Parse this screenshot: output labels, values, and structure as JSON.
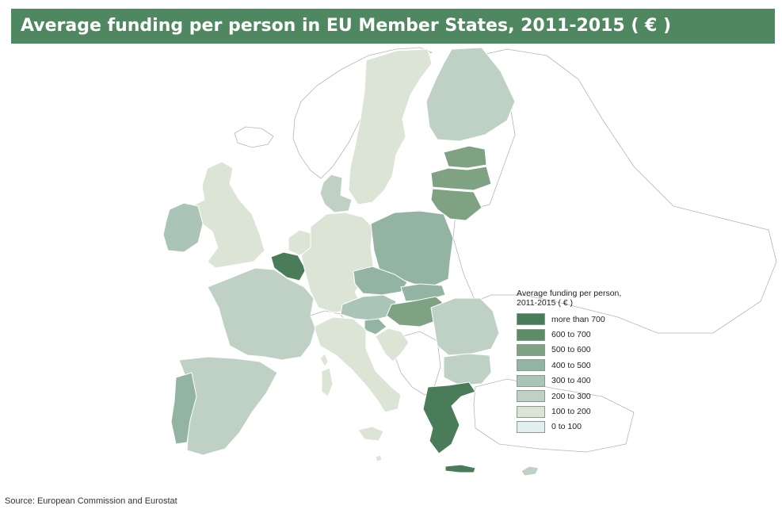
{
  "title": "Average funding per person in EU Member States, 2011-2015 ( € )",
  "legend": {
    "title": "Average funding per person, 2011-2015 ( € )",
    "classes": [
      {
        "label": "more than 700",
        "color": "#4a7c5a"
      },
      {
        "label": "600 to 700",
        "color": "#5d8c69"
      },
      {
        "label": "500 to 600",
        "color": "#7fa283"
      },
      {
        "label": "400 to 500",
        "color": "#93b3a3"
      },
      {
        "label": "300 to 400",
        "color": "#aac4b7"
      },
      {
        "label": "200 to 300",
        "color": "#bfd1c5"
      },
      {
        "label": "100 to 200",
        "color": "#dce4d5"
      },
      {
        "label": "0 to 100",
        "color": "#e3eeef"
      }
    ]
  },
  "source": "Source: European Commission and Eurostat",
  "colors": {
    "title_bar": "#4f8760",
    "non_eu_fill": "#ffffff",
    "non_eu_border": "#b5b5b5",
    "eu_border": "#ffffff"
  },
  "regions": [
    {
      "name": "Finland",
      "class": "200 to 300"
    },
    {
      "name": "Sweden",
      "class": "100 to 200"
    },
    {
      "name": "Estonia",
      "class": "500 to 600"
    },
    {
      "name": "Latvia",
      "class": "500 to 600"
    },
    {
      "name": "Lithuania",
      "class": "500 to 600"
    },
    {
      "name": "Denmark",
      "class": "200 to 300"
    },
    {
      "name": "United Kingdom",
      "class": "100 to 200"
    },
    {
      "name": "Ireland",
      "class": "300 to 400"
    },
    {
      "name": "Netherlands",
      "class": "100 to 200"
    },
    {
      "name": "Belgium",
      "class": "more than 700"
    },
    {
      "name": "Luxembourg",
      "class": "more than 700"
    },
    {
      "name": "Germany",
      "class": "100 to 200"
    },
    {
      "name": "Poland",
      "class": "400 to 500"
    },
    {
      "name": "Czech Republic",
      "class": "400 to 500"
    },
    {
      "name": "Slovakia",
      "class": "400 to 500"
    },
    {
      "name": "Austria",
      "class": "300 to 400"
    },
    {
      "name": "Hungary",
      "class": "500 to 600"
    },
    {
      "name": "Slovenia",
      "class": "400 to 500"
    },
    {
      "name": "Croatia",
      "class": "100 to 200"
    },
    {
      "name": "Romania",
      "class": "200 to 300"
    },
    {
      "name": "Bulgaria",
      "class": "200 to 300"
    },
    {
      "name": "Greece",
      "class": "more than 700"
    },
    {
      "name": "Cyprus",
      "class": "200 to 300"
    },
    {
      "name": "Italy",
      "class": "100 to 200"
    },
    {
      "name": "Malta",
      "class": "100 to 200"
    },
    {
      "name": "France",
      "class": "200 to 300"
    },
    {
      "name": "Spain",
      "class": "200 to 300"
    },
    {
      "name": "Portugal",
      "class": "400 to 500"
    }
  ]
}
